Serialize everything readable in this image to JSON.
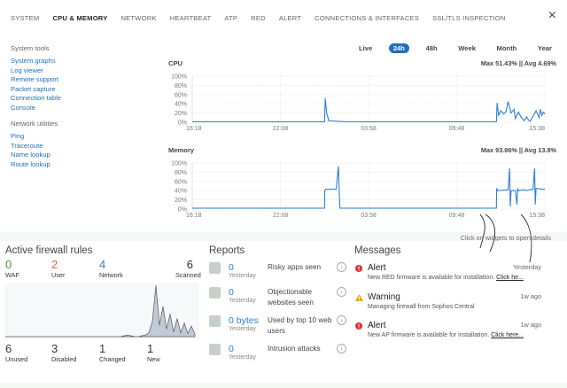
{
  "tabs": [
    "SYSTEM",
    "CPU & MEMORY",
    "NETWORK",
    "HEARTBEAT",
    "ATP",
    "RED",
    "ALERT",
    "CONNECTIONS & INTERFACES",
    "SSL/TLS INSPECTION"
  ],
  "active_tab": "CPU & MEMORY",
  "close_icon": "×",
  "sidebar": {
    "tools_heading": "System tools",
    "tools": [
      "System graphs",
      "Log viewer",
      "Remote support",
      "Packet capture",
      "Connection table",
      "Console"
    ],
    "net_heading": "Network utilities",
    "net": [
      "Ping",
      "Traceroute",
      "Name lookup",
      "Route lookup"
    ]
  },
  "ranges": [
    "Live",
    "24h",
    "48h",
    "Week",
    "Month",
    "Year"
  ],
  "selected_range": "24h",
  "chart_data": [
    {
      "type": "line",
      "title": "CPU",
      "stat": "Max 51.43% || Avg 4.69%",
      "y_ticks": [
        "100%",
        "80%",
        "60%",
        "40%",
        "20%",
        "0%"
      ],
      "x_ticks": [
        "16:18",
        "22:08",
        "03:58",
        "09:48",
        "15:38"
      ],
      "ylim": [
        0,
        100
      ],
      "color": "#2f7fd0",
      "x": [
        0,
        3,
        6,
        9,
        9.05,
        9.15,
        9.3,
        10.5,
        12,
        15,
        18,
        20.7,
        20.75,
        20.85,
        21,
        21.2,
        21.35,
        21.5,
        21.7,
        21.9,
        22,
        22.2,
        22.4,
        22.6,
        22.75,
        22.9,
        23,
        23.4,
        23.6,
        23.7,
        23.8,
        23.9,
        24
      ],
      "y": [
        1,
        1,
        1,
        1,
        52,
        20,
        3,
        1,
        1,
        1,
        1,
        1,
        42,
        15,
        25,
        18,
        23,
        45,
        20,
        28,
        8,
        22,
        10,
        3,
        12,
        4,
        2,
        25,
        10,
        28,
        15,
        22,
        18
      ]
    },
    {
      "type": "line",
      "title": "Memory",
      "stat": "Max 93.86% || Avg 13.8%",
      "y_ticks": [
        "100%",
        "80%",
        "60%",
        "40%",
        "20%",
        "0%"
      ],
      "x_ticks": [
        "16:18",
        "22:08",
        "03:58",
        "09:48",
        "15:38"
      ],
      "ylim": [
        0,
        100
      ],
      "color": "#2f7fd0",
      "x": [
        0,
        3,
        6,
        9,
        9.02,
        9.1,
        9.8,
        9.95,
        10,
        10.05,
        15,
        20.7,
        20.72,
        20.8,
        21.5,
        21.6,
        21.65,
        21.7,
        22,
        22.1,
        22.15,
        22.2,
        22.6,
        22.7,
        23,
        23.2,
        23.3,
        23.35,
        23.4,
        23.8,
        24
      ],
      "y": [
        2,
        2,
        2,
        2,
        40,
        43,
        43,
        93,
        43,
        2,
        2,
        2,
        45,
        40,
        42,
        88,
        5,
        40,
        40,
        10,
        45,
        40,
        42,
        40,
        42,
        43,
        88,
        10,
        45,
        43,
        43
      ]
    },
    {
      "type": "area",
      "title": "Active firewall rules",
      "color": "#8d9bb5",
      "values": [
        0,
        0,
        0,
        0,
        0,
        0,
        0,
        0,
        0,
        0,
        0,
        0,
        0,
        0,
        0,
        0,
        0,
        0,
        0,
        0,
        0,
        0,
        0,
        0,
        0,
        0,
        0,
        0,
        0,
        0,
        0,
        0,
        0,
        1,
        2,
        1,
        0,
        0,
        1,
        2,
        5,
        20,
        68,
        15,
        40,
        10,
        30,
        6,
        24,
        5,
        18,
        4,
        14,
        3
      ]
    }
  ],
  "hint": "Click on widgets to open details",
  "firewall": {
    "title": "Active firewall rules",
    "top": [
      {
        "num": "0",
        "label": "WAF",
        "color": "#4d9a3f"
      },
      {
        "num": "2",
        "label": "User",
        "color": "#e0603a"
      },
      {
        "num": "4",
        "label": "Network",
        "color": "#3a7fd0"
      },
      {
        "num": "6",
        "label": "Scanned",
        "color": "#333333"
      }
    ],
    "bottom": [
      {
        "num": "6",
        "label": "Unused"
      },
      {
        "num": "3",
        "label": "Disabled"
      },
      {
        "num": "1",
        "label": "Changed"
      },
      {
        "num": "1",
        "label": "New"
      }
    ]
  },
  "reports": {
    "title": "Reports",
    "items": [
      {
        "value": "0",
        "sub": "Yesterday",
        "text": "Risky apps seen"
      },
      {
        "value": "0",
        "sub": "Yesterday",
        "text": "Objectionable websites seen"
      },
      {
        "value": "0 bytes",
        "sub": "Yesterday",
        "text": "Used by top 10 web users"
      },
      {
        "value": "0",
        "sub": "Yesterday",
        "text": "Intrusion attacks"
      }
    ]
  },
  "messages": {
    "title": "Messages",
    "items": [
      {
        "type": "Alert",
        "text": "New RED firmware is available for installation.",
        "link": "Click he...",
        "time": "Yesterday",
        "color": "#d9312b"
      },
      {
        "type": "Warning",
        "text": "Managing firewall from Sophos Central",
        "link": "",
        "time": "1w ago",
        "color": "#f0a020"
      },
      {
        "type": "Alert",
        "text": "New AP firmware is available for installation.",
        "link": "Click here...",
        "time": "1w ago",
        "color": "#d9312b"
      }
    ]
  }
}
